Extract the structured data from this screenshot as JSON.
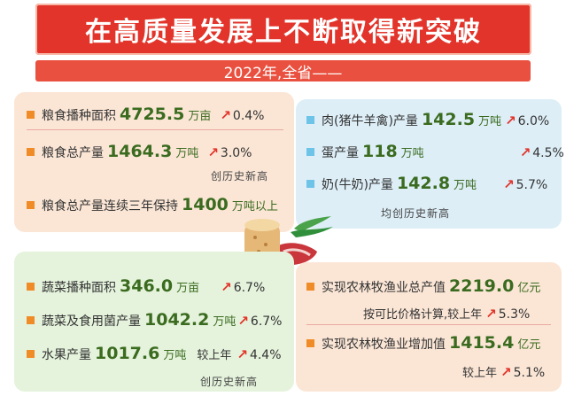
{
  "title": "在高质量发展上不断取得新突破",
  "subtitle": "2022年,全省——",
  "grain": {
    "items": [
      {
        "label": "粮食播种面积",
        "value": "4725.5",
        "unit": "万亩",
        "pct": "0.4%"
      },
      {
        "label": "粮食总产量",
        "value": "1464.3",
        "unit": "万吨",
        "pct": "3.0%"
      },
      {
        "label": "粮食总产量连续三年保持",
        "value": "1400",
        "unit": "万吨以上"
      }
    ],
    "note": "创历史新高"
  },
  "livestock": {
    "items": [
      {
        "label": "肉(猪牛羊禽)产量",
        "value": "142.5",
        "unit": "万吨",
        "pct": "6.0%"
      },
      {
        "label": "蛋产量",
        "value": "118",
        "unit": "万吨",
        "pct": "4.5%"
      },
      {
        "label": "奶(牛奶)产量",
        "value": "142.8",
        "unit": "万吨",
        "pct": "5.7%"
      }
    ],
    "note": "均创历史新高"
  },
  "vegetables": {
    "items": [
      {
        "label": "蔬菜播种面积",
        "value": "346.0",
        "unit": "万亩",
        "pct": "6.7%"
      },
      {
        "label": "蔬菜及食用菌产量",
        "value": "1042.2",
        "unit": "万吨",
        "pct": "6.7%"
      },
      {
        "label": "水果产量",
        "value": "1017.6",
        "unit": "万吨",
        "prefix": "较上年",
        "pct": "4.4%"
      }
    ],
    "note": "创历史新高"
  },
  "agriculture": {
    "items": [
      {
        "label": "实现农林牧渔业总产值",
        "value": "2219.0",
        "unit": "亿元",
        "note": "按可比价格计算,较上年",
        "pct": "5.3%"
      },
      {
        "label": "实现农林牧渔业增加值",
        "value": "1415.4",
        "unit": "亿元",
        "note": "较上年",
        "pct": "5.1%"
      }
    ]
  },
  "colors": {
    "banner": "#e2342a",
    "value_text": "#3a6b1f",
    "arrow": "#e2342a"
  }
}
